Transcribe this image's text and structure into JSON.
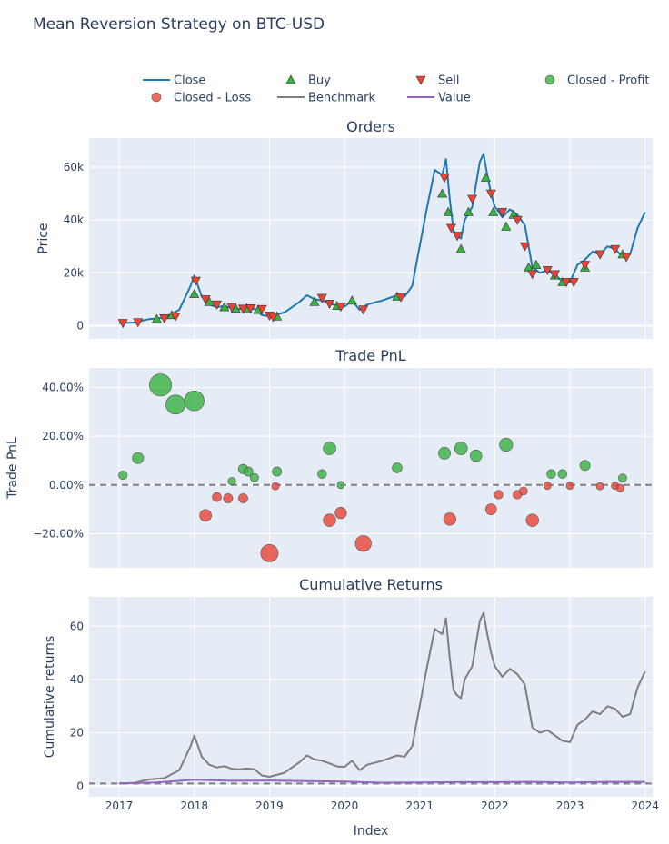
{
  "title": "Mean Reversion Strategy on BTC-USD",
  "legend": {
    "items": [
      {
        "label": "Close",
        "kind": "line",
        "color": "#1f77b4"
      },
      {
        "label": "Buy",
        "kind": "triangle-up",
        "color": "#37b13f"
      },
      {
        "label": "Sell",
        "kind": "triangle-down",
        "color": "#ea4335"
      },
      {
        "label": "Closed - Profit",
        "kind": "circle",
        "color": "#37b13f"
      },
      {
        "label": "Closed - Loss",
        "kind": "circle",
        "color": "#ea4335"
      },
      {
        "label": "Benchmark",
        "kind": "line",
        "color": "#7f7f7f"
      },
      {
        "label": "Value",
        "kind": "line",
        "color": "#9467bd"
      }
    ]
  },
  "x_axis": {
    "label": "Index",
    "ticks": [
      "2017",
      "2018",
      "2019",
      "2020",
      "2021",
      "2022",
      "2023",
      "2024"
    ],
    "range": [
      2016.6,
      2024.1
    ]
  },
  "chart_data": [
    {
      "type": "line",
      "title": "Orders",
      "ylabel": "Price",
      "ylim": [
        -5000,
        71000
      ],
      "yticks": [
        0,
        20000,
        40000,
        60000
      ],
      "ytick_labels": [
        "0",
        "20k",
        "40k",
        "60k"
      ],
      "series": [
        {
          "name": "Close",
          "x": [
            2017.0,
            2017.2,
            2017.4,
            2017.6,
            2017.8,
            2017.95,
            2018.0,
            2018.1,
            2018.2,
            2018.3,
            2018.4,
            2018.5,
            2018.6,
            2018.7,
            2018.8,
            2018.9,
            2019.0,
            2019.2,
            2019.4,
            2019.5,
            2019.6,
            2019.7,
            2019.8,
            2019.9,
            2020.0,
            2020.1,
            2020.2,
            2020.3,
            2020.5,
            2020.7,
            2020.8,
            2020.9,
            2021.0,
            2021.1,
            2021.2,
            2021.3,
            2021.35,
            2021.4,
            2021.45,
            2021.5,
            2021.55,
            2021.6,
            2021.7,
            2021.8,
            2021.85,
            2021.9,
            2021.95,
            2022.0,
            2022.1,
            2022.2,
            2022.3,
            2022.4,
            2022.45,
            2022.5,
            2022.6,
            2022.7,
            2022.8,
            2022.9,
            2023.0,
            2023.1,
            2023.2,
            2023.3,
            2023.4,
            2023.5,
            2023.6,
            2023.7,
            2023.8,
            2023.9,
            2024.0
          ],
          "y": [
            1000,
            1200,
            2500,
            3000,
            6000,
            15000,
            19000,
            11000,
            8000,
            7000,
            7500,
            6500,
            6300,
            6600,
            6300,
            4000,
            3500,
            5000,
            9000,
            11500,
            10000,
            9500,
            8500,
            7400,
            7200,
            9500,
            6000,
            8000,
            9500,
            11500,
            11000,
            15000,
            30000,
            45000,
            59000,
            57000,
            63000,
            48000,
            36000,
            34000,
            33000,
            40000,
            45000,
            62000,
            65000,
            57000,
            50000,
            45000,
            41000,
            44000,
            42000,
            38000,
            30000,
            22000,
            20000,
            21000,
            19000,
            17000,
            16500,
            23000,
            25000,
            28000,
            27000,
            30000,
            29000,
            26000,
            27000,
            37000,
            43000
          ]
        },
        {
          "name": "Buy",
          "x": [
            2017.5,
            2017.7,
            2018.0,
            2018.2,
            2018.4,
            2018.55,
            2018.7,
            2018.85,
            2019.1,
            2019.6,
            2019.9,
            2020.1,
            2020.7,
            2021.3,
            2021.38,
            2021.55,
            2021.65,
            2021.88,
            2021.98,
            2022.15,
            2022.25,
            2022.45,
            2022.55,
            2022.8,
            2022.9,
            2023.2,
            2023.7
          ],
          "y": [
            2500,
            4000,
            12000,
            9000,
            7000,
            6500,
            6600,
            6000,
            3500,
            9000,
            7500,
            9500,
            11000,
            50000,
            43000,
            29000,
            43000,
            56000,
            43000,
            37500,
            42000,
            22000,
            23000,
            19000,
            16500,
            22000,
            27000
          ]
        },
        {
          "name": "Sell",
          "x": [
            2017.05,
            2017.25,
            2017.6,
            2017.75,
            2018.02,
            2018.15,
            2018.3,
            2018.5,
            2018.65,
            2018.75,
            2018.9,
            2019.0,
            2019.05,
            2019.7,
            2019.8,
            2019.95,
            2020.25,
            2020.75,
            2021.33,
            2021.42,
            2021.5,
            2021.7,
            2021.95,
            2022.1,
            2022.3,
            2022.4,
            2022.5,
            2022.7,
            2022.8,
            2022.95,
            2023.05,
            2023.2,
            2023.4,
            2023.6,
            2023.75
          ],
          "y": [
            1000,
            1300,
            2800,
            3500,
            17000,
            10000,
            8000,
            7000,
            6400,
            6600,
            6300,
            3800,
            3300,
            10500,
            8300,
            7200,
            6100,
            10800,
            56000,
            37000,
            34000,
            48000,
            50000,
            43000,
            40000,
            30000,
            19500,
            21000,
            19500,
            16500,
            16500,
            23000,
            27000,
            29000,
            26000
          ]
        }
      ]
    },
    {
      "type": "scatter",
      "title": "Trade PnL",
      "ylabel": "Trade PnL",
      "ylim": [
        -0.34,
        0.48
      ],
      "yticks": [
        -0.2,
        0,
        0.2,
        0.4
      ],
      "ytick_labels": [
        "−20.00%",
        "0.00%",
        "20.00%",
        "40.00%"
      ],
      "zero_line": 0,
      "series": [
        {
          "name": "Closed - Profit",
          "x": [
            2017.05,
            2017.25,
            2017.55,
            2017.75,
            2018.0,
            2018.5,
            2018.65,
            2018.72,
            2018.8,
            2019.1,
            2019.7,
            2019.8,
            2019.95,
            2020.7,
            2021.33,
            2021.55,
            2021.75,
            2022.15,
            2022.75,
            2022.9,
            2023.2,
            2023.7
          ],
          "y": [
            0.04,
            0.11,
            0.41,
            0.33,
            0.345,
            0.015,
            0.065,
            0.055,
            0.03,
            0.055,
            0.045,
            0.15,
            0.0,
            0.07,
            0.13,
            0.15,
            0.12,
            0.165,
            0.045,
            0.045,
            0.08,
            0.028
          ]
        },
        {
          "name": "Closed - Loss",
          "x": [
            2018.15,
            2018.3,
            2018.45,
            2018.65,
            2019.0,
            2019.08,
            2019.8,
            2019.95,
            2020.25,
            2021.4,
            2021.95,
            2022.05,
            2022.3,
            2022.38,
            2022.5,
            2022.7,
            2023.0,
            2023.4,
            2023.6,
            2023.67
          ],
          "y": [
            -0.125,
            -0.05,
            -0.055,
            -0.055,
            -0.28,
            -0.005,
            -0.145,
            -0.115,
            -0.24,
            -0.14,
            -0.1,
            -0.04,
            -0.04,
            -0.025,
            -0.145,
            -0.003,
            -0.003,
            -0.005,
            -0.003,
            -0.013
          ]
        }
      ]
    },
    {
      "type": "line",
      "title": "Cumulative Returns",
      "ylabel": "Cumulative returns",
      "ylim": [
        -4,
        71
      ],
      "yticks": [
        0,
        20,
        40,
        60
      ],
      "ytick_labels": [
        "0",
        "20",
        "40",
        "60"
      ],
      "baseline": 1,
      "series": [
        {
          "name": "Benchmark",
          "x": [
            2017.0,
            2017.2,
            2017.4,
            2017.6,
            2017.8,
            2017.95,
            2018.0,
            2018.1,
            2018.2,
            2018.3,
            2018.4,
            2018.5,
            2018.6,
            2018.7,
            2018.8,
            2018.9,
            2019.0,
            2019.2,
            2019.4,
            2019.5,
            2019.6,
            2019.7,
            2019.8,
            2019.9,
            2020.0,
            2020.1,
            2020.2,
            2020.3,
            2020.5,
            2020.7,
            2020.8,
            2020.9,
            2021.0,
            2021.1,
            2021.2,
            2021.3,
            2021.35,
            2021.4,
            2021.45,
            2021.5,
            2021.55,
            2021.6,
            2021.7,
            2021.8,
            2021.85,
            2021.9,
            2021.95,
            2022.0,
            2022.1,
            2022.2,
            2022.3,
            2022.4,
            2022.45,
            2022.5,
            2022.6,
            2022.7,
            2022.8,
            2022.9,
            2023.0,
            2023.1,
            2023.2,
            2023.3,
            2023.4,
            2023.5,
            2023.6,
            2023.7,
            2023.8,
            2023.9,
            2024.0
          ],
          "y": [
            1,
            1.2,
            2.5,
            3,
            6,
            15,
            19,
            11,
            8,
            7,
            7.5,
            6.5,
            6.3,
            6.6,
            6.3,
            4,
            3.5,
            5,
            9,
            11.5,
            10,
            9.5,
            8.5,
            7.4,
            7.2,
            9.5,
            6,
            8,
            9.5,
            11.5,
            11,
            15,
            30,
            45,
            59,
            57,
            63,
            48,
            36,
            34,
            33,
            40,
            45,
            62,
            65,
            57,
            50,
            45,
            41,
            44,
            42,
            38,
            30,
            22,
            20,
            21,
            19,
            17,
            16.5,
            23,
            25,
            28,
            27,
            30,
            29,
            26,
            27,
            37,
            43
          ]
        },
        {
          "name": "Value",
          "x": [
            2017.0,
            2017.5,
            2018.0,
            2018.5,
            2019.0,
            2019.5,
            2020.0,
            2020.5,
            2021.0,
            2021.5,
            2022.0,
            2022.5,
            2023.0,
            2023.5,
            2024.0
          ],
          "y": [
            1,
            1.4,
            2.4,
            2.0,
            2.1,
            1.9,
            1.7,
            1.3,
            1.4,
            1.5,
            1.5,
            1.6,
            1.4,
            1.6,
            1.6
          ]
        }
      ]
    }
  ]
}
